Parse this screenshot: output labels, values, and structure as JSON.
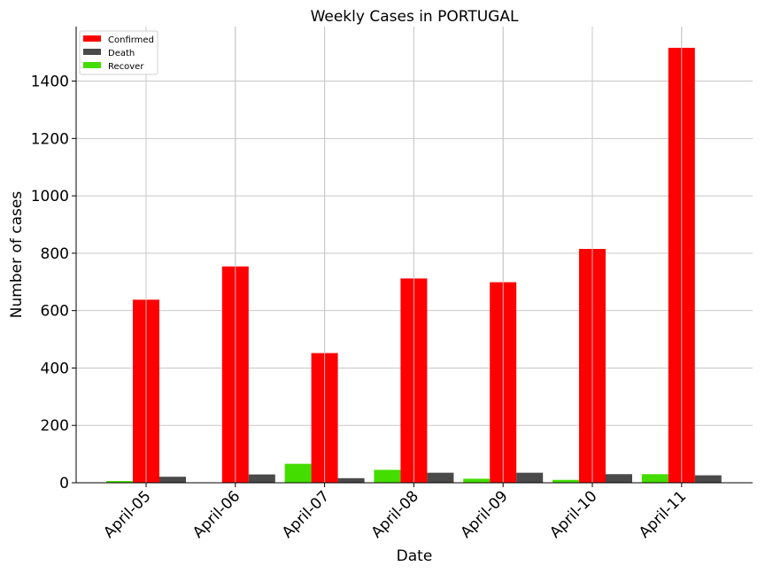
{
  "chart_data": {
    "type": "bar",
    "title": "Weekly Cases in PORTUGAL",
    "xlabel": "Date",
    "ylabel": "Number of cases",
    "categories": [
      "April-05",
      "April-06",
      "April-07",
      "April-08",
      "April-09",
      "April-10",
      "April-11"
    ],
    "series": [
      {
        "name": "Recover",
        "color": "#44dd00",
        "values": [
          6,
          0,
          66,
          45,
          14,
          10,
          30
        ]
      },
      {
        "name": "Confirmed",
        "color": "#ff0000",
        "values": [
          638,
          754,
          452,
          712,
          699,
          815,
          1516
        ]
      },
      {
        "name": "Death",
        "color": "#4a4a4a",
        "values": [
          21,
          29,
          16,
          35,
          35,
          30,
          26
        ]
      }
    ],
    "legend_order": [
      "Confirmed",
      "Death",
      "Recover"
    ],
    "yticks": [
      0,
      200,
      400,
      600,
      800,
      1000,
      1200,
      1400
    ],
    "ylim": [
      0,
      1590
    ],
    "grid": true,
    "legend_position": "top-left"
  }
}
